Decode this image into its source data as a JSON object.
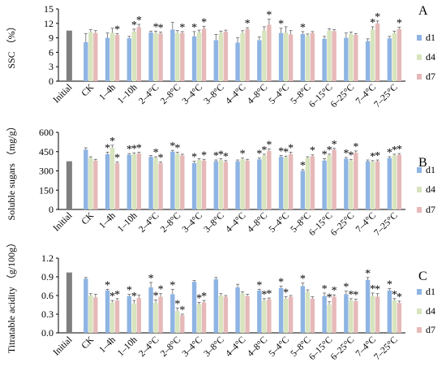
{
  "chart_data": [
    {
      "type": "bar",
      "panel_label": "A",
      "ylabel": "SSC （%）",
      "ylim": [
        0,
        15
      ],
      "yticks": [
        0,
        3,
        6,
        9,
        12,
        15
      ],
      "categories": [
        "Initial",
        "CK",
        "1–4h",
        "1–10h",
        "2–4°C",
        "2–8°C",
        "3–4°C",
        "3–8°C",
        "4–4°C",
        "4–8°C",
        "5–4°C",
        "5–8°C",
        "6–15°C",
        "6–25°C",
        "7–4°C",
        "7–25°C"
      ],
      "initial": 10.5,
      "legend": [
        "d1",
        "d4",
        "d7"
      ],
      "colors": {
        "initial": "#7f7f7f",
        "d1": "#8eb4e3",
        "d4": "#d7e4bd",
        "d7": "#e6b9b8"
      },
      "series": [
        {
          "name": "d1",
          "values": [
            null,
            8.1,
            9.0,
            8.9,
            10.1,
            10.7,
            9.3,
            8.5,
            8.0,
            8.5,
            10.0,
            9.8,
            8.8,
            9.0,
            8.3,
            8.9
          ]
        },
        {
          "name": "d4",
          "values": [
            null,
            10.2,
            10.0,
            10.3,
            10.0,
            10.0,
            10.1,
            10.0,
            10.0,
            10.5,
            10.1,
            9.5,
            10.5,
            9.8,
            10.7,
            10.0
          ]
        },
        {
          "name": "d7",
          "values": [
            null,
            10.0,
            9.6,
            11.2,
            9.9,
            10.0,
            10.9,
            10.3,
            10.8,
            11.7,
            9.7,
            10.0,
            10.4,
            9.6,
            12.0,
            10.8
          ]
        }
      ],
      "errors": [
        {
          "name": "d1",
          "values": [
            null,
            1.8,
            1.0,
            0.4,
            0.3,
            1.5,
            1.0,
            1.2,
            1.0,
            0.7,
            1.0,
            0.5,
            0.5,
            1.0,
            0.5,
            0.4
          ]
        },
        {
          "name": "d4",
          "values": [
            null,
            0.5,
            1.0,
            0.5,
            0.4,
            0.5,
            0.5,
            0.4,
            0.5,
            0.8,
            1.2,
            0.3,
            0.4,
            0.4,
            0.6,
            0.4
          ]
        },
        {
          "name": "d7",
          "values": [
            null,
            0.5,
            0.3,
            0.6,
            0.3,
            0.3,
            0.5,
            0.3,
            0.3,
            1.2,
            0.8,
            0.3,
            0.3,
            0.3,
            0.5,
            0.4
          ]
        }
      ],
      "significance": [
        {
          "name": "d1",
          "values": [
            null,
            0,
            0,
            0,
            0,
            0,
            1,
            0,
            0,
            0,
            1,
            1,
            0,
            0,
            0,
            0
          ]
        },
        {
          "name": "d4",
          "values": [
            null,
            0,
            0,
            1,
            1,
            0,
            0,
            0,
            0,
            0,
            0,
            0,
            0,
            0,
            1,
            0
          ]
        },
        {
          "name": "d7",
          "values": [
            null,
            0,
            1,
            1,
            1,
            1,
            1,
            0,
            1,
            1,
            0,
            0,
            0,
            0,
            1,
            1
          ]
        }
      ]
    },
    {
      "type": "bar",
      "panel_label": "B",
      "ylabel": "Soluble sugars （mg/g）",
      "ylim": [
        0,
        600
      ],
      "yticks": [
        0,
        150,
        300,
        450,
        600
      ],
      "categories": [
        "Initial",
        "CK",
        "1–4h",
        "1–10h",
        "2–4°C",
        "2–8°C",
        "3–4°C",
        "3–8°C",
        "4–4°C",
        "4–8°C",
        "5–4°C",
        "5–8°C",
        "6–15°C",
        "6–25°C",
        "7–4°C",
        "7–25°C"
      ],
      "initial": 375,
      "legend": [
        "d1",
        "d4",
        "d7"
      ],
      "colors": {
        "initial": "#7f7f7f",
        "d1": "#8eb4e3",
        "d4": "#d7e4bd",
        "d7": "#e6b9b8"
      },
      "series": [
        {
          "name": "d1",
          "values": [
            null,
            465,
            430,
            425,
            410,
            450,
            360,
            375,
            375,
            390,
            410,
            300,
            380,
            395,
            375,
            400
          ]
        },
        {
          "name": "d4",
          "values": [
            null,
            400,
            480,
            430,
            400,
            435,
            385,
            385,
            390,
            420,
            405,
            400,
            420,
            380,
            370,
            420
          ]
        },
        {
          "name": "d7",
          "values": [
            null,
            380,
            360,
            435,
            360,
            420,
            380,
            370,
            380,
            455,
            430,
            415,
            465,
            440,
            375,
            425
          ]
        }
      ],
      "errors": [
        {
          "name": "d1",
          "values": [
            null,
            15,
            15,
            10,
            10,
            10,
            15,
            10,
            10,
            10,
            10,
            10,
            15,
            10,
            10,
            10
          ]
        },
        {
          "name": "d4",
          "values": [
            null,
            10,
            20,
            10,
            10,
            10,
            10,
            10,
            10,
            10,
            10,
            10,
            10,
            10,
            10,
            10
          ]
        },
        {
          "name": "d7",
          "values": [
            null,
            10,
            10,
            10,
            10,
            10,
            10,
            10,
            10,
            15,
            15,
            10,
            10,
            15,
            10,
            10
          ]
        }
      ],
      "significance": [
        {
          "name": "d1",
          "values": [
            null,
            0,
            1,
            1,
            0,
            1,
            1,
            1,
            0,
            1,
            1,
            1,
            1,
            1,
            0,
            1
          ]
        },
        {
          "name": "d4",
          "values": [
            null,
            0,
            1,
            1,
            1,
            1,
            0,
            1,
            1,
            1,
            1,
            0,
            1,
            1,
            1,
            1
          ]
        },
        {
          "name": "d7",
          "values": [
            null,
            0,
            1,
            1,
            1,
            0,
            1,
            1,
            0,
            1,
            1,
            1,
            1,
            1,
            1,
            1
          ]
        }
      ]
    },
    {
      "type": "bar",
      "panel_label": "C",
      "ylabel": "Titratable acidity （g/100g）",
      "ylim": [
        0,
        1.2
      ],
      "yticks": [
        0.0,
        0.3,
        0.6,
        0.9,
        1.2
      ],
      "categories": [
        "Initial",
        "CK",
        "1–4h",
        "1–10h",
        "2–4°C",
        "2–8°C",
        "3–4°C",
        "3–8°C",
        "4–4°C",
        "4–8°C",
        "5–4°C",
        "5–8°C",
        "6–15°C",
        "6–25°C",
        "7–4°C",
        "7–25°C"
      ],
      "initial": 0.97,
      "legend": [
        "d1",
        "d4",
        "d7"
      ],
      "colors": {
        "initial": "#7f7f7f",
        "d1": "#8eb4e3",
        "d4": "#d7e4bd",
        "d7": "#e6b9b8"
      },
      "series": [
        {
          "name": "d1",
          "values": [
            null,
            0.87,
            0.68,
            0.59,
            0.73,
            0.62,
            0.82,
            0.86,
            0.73,
            0.68,
            0.72,
            0.75,
            0.59,
            0.62,
            0.85,
            0.68
          ]
        },
        {
          "name": "d4",
          "values": [
            null,
            0.6,
            0.49,
            0.47,
            0.48,
            0.35,
            0.46,
            0.6,
            0.63,
            0.52,
            0.55,
            0.66,
            0.45,
            0.52,
            0.59,
            0.52
          ]
        },
        {
          "name": "d7",
          "values": [
            null,
            0.57,
            0.52,
            0.56,
            0.58,
            0.28,
            0.49,
            0.58,
            0.59,
            0.54,
            0.58,
            0.55,
            0.58,
            0.51,
            0.58,
            0.48
          ]
        }
      ],
      "errors": [
        {
          "name": "d1",
          "values": [
            null,
            0.02,
            0.02,
            0.03,
            0.08,
            0.08,
            0.02,
            0.03,
            0.05,
            0.02,
            0.03,
            0.05,
            0.05,
            0.05,
            0.04,
            0.03
          ]
        },
        {
          "name": "d4",
          "values": [
            null,
            0.03,
            0.03,
            0.05,
            0.05,
            0.05,
            0.03,
            0.03,
            0.03,
            0.03,
            0.03,
            0.03,
            0.05,
            0.03,
            0.05,
            0.03
          ]
        },
        {
          "name": "d7",
          "values": [
            null,
            0.05,
            0.03,
            0.05,
            0.05,
            0.02,
            0.03,
            0.02,
            0.03,
            0.02,
            0.02,
            0.03,
            0.03,
            0.03,
            0.05,
            0.03
          ]
        }
      ],
      "significance": [
        {
          "name": "d1",
          "values": [
            null,
            0,
            1,
            1,
            1,
            1,
            0,
            0,
            0,
            1,
            1,
            1,
            1,
            1,
            1,
            1
          ]
        },
        {
          "name": "d4",
          "values": [
            null,
            0,
            1,
            1,
            1,
            1,
            1,
            0,
            0,
            1,
            1,
            0,
            1,
            1,
            1,
            1
          ]
        },
        {
          "name": "d7",
          "values": [
            null,
            0,
            1,
            0,
            1,
            1,
            1,
            0,
            0,
            1,
            0,
            0,
            1,
            1,
            1,
            1
          ]
        }
      ]
    }
  ]
}
